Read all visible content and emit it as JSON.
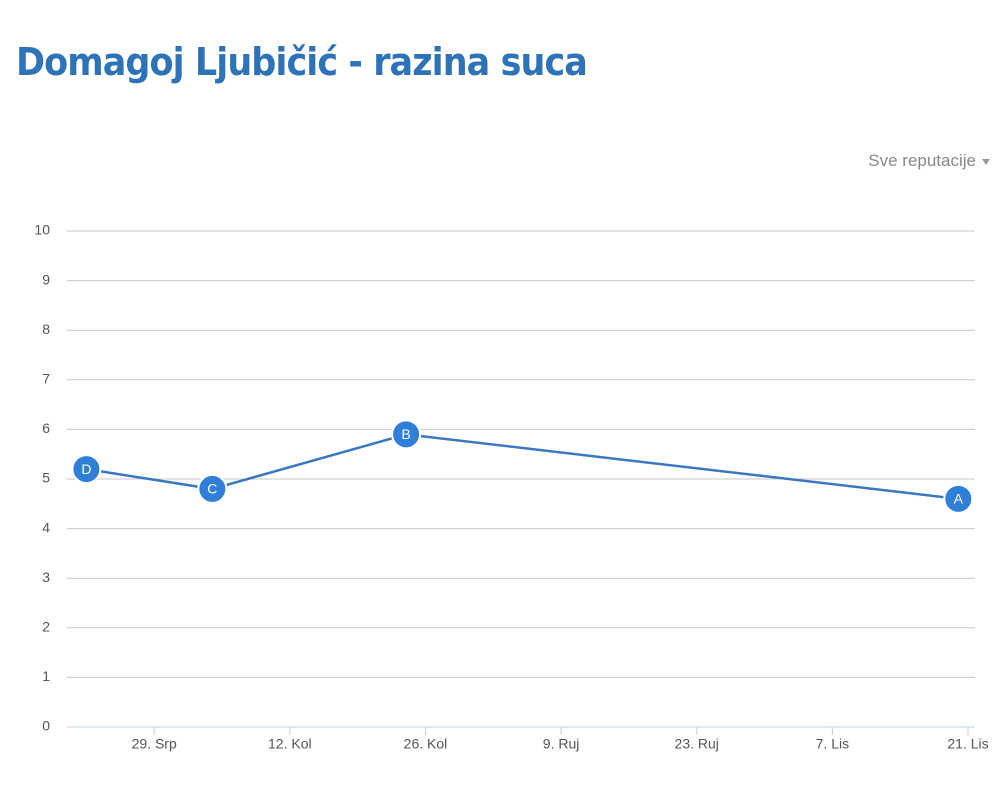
{
  "title": "Domagoj Ljubičić - razina suca",
  "dropdown": "Sve reputacije",
  "chart_data": {
    "type": "line",
    "x": [
      "07-22",
      "08-04",
      "08-24",
      "10-20"
    ],
    "values": [
      5.2,
      4.8,
      5.9,
      4.6
    ],
    "point_labels": [
      "D",
      "C",
      "B",
      "A"
    ],
    "color": "#2f7ed8",
    "xlim": [
      "07-20",
      "10-21"
    ],
    "xticks": [
      {
        "value": "07-29",
        "label": "29. Srp"
      },
      {
        "value": "08-12",
        "label": "12. Kol"
      },
      {
        "value": "08-26",
        "label": "26. Kol"
      },
      {
        "value": "09-09",
        "label": "9. Ruj"
      },
      {
        "value": "09-23",
        "label": "23. Ruj"
      },
      {
        "value": "10-07",
        "label": "7. Lis"
      },
      {
        "value": "10-21",
        "label": "21. Lis"
      }
    ],
    "ylim": [
      0,
      10
    ],
    "yticks": [
      0,
      1,
      2,
      3,
      4,
      5,
      6,
      7,
      8,
      9,
      10
    ],
    "grid": true
  }
}
